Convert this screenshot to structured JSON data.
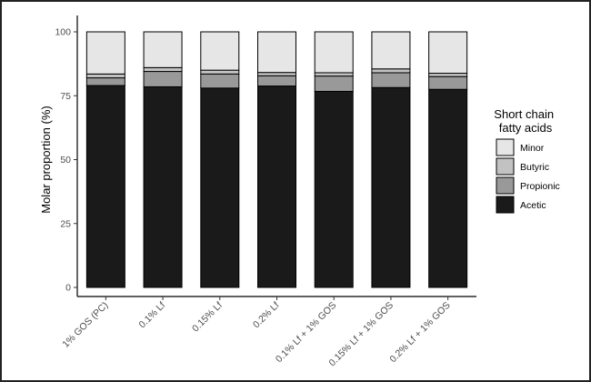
{
  "chart_data": {
    "type": "bar",
    "stacked": true,
    "categories": [
      "1% GOS (PC)",
      "0.1% Lf",
      "0.15% Lf",
      "0.2% Lf",
      "0.1% Lf + 1% GOS",
      "0.15% Lf + 1% GOS",
      "0.2% Lf + 1% GOS"
    ],
    "series": [
      {
        "name": "Acetic",
        "color": "#1a1a1a",
        "values": [
          79.0,
          78.5,
          78.0,
          78.8,
          76.7,
          78.2,
          77.5
        ]
      },
      {
        "name": "Propionic",
        "color": "#999999",
        "values": [
          3.0,
          6.0,
          5.5,
          4.0,
          6.0,
          5.8,
          5.0
        ]
      },
      {
        "name": "Butyric",
        "color": "#c2c2c2",
        "values": [
          1.5,
          1.5,
          1.5,
          1.3,
          1.3,
          1.5,
          1.3
        ]
      },
      {
        "name": "Minor",
        "color": "#e6e6e6",
        "values": [
          16.5,
          14.0,
          15.0,
          15.9,
          16.0,
          14.5,
          16.2
        ]
      }
    ],
    "title": "",
    "xlabel": "",
    "ylabel": "Molar proportion (%)",
    "ylim": [
      0,
      100
    ],
    "yticks": [
      0,
      25,
      50,
      75,
      100
    ],
    "grid": false,
    "legend": {
      "title_lines": [
        "Short chain",
        "fatty acids"
      ],
      "placement": "right",
      "order": [
        "Minor",
        "Butyric",
        "Propionic",
        "Acetic"
      ]
    }
  }
}
